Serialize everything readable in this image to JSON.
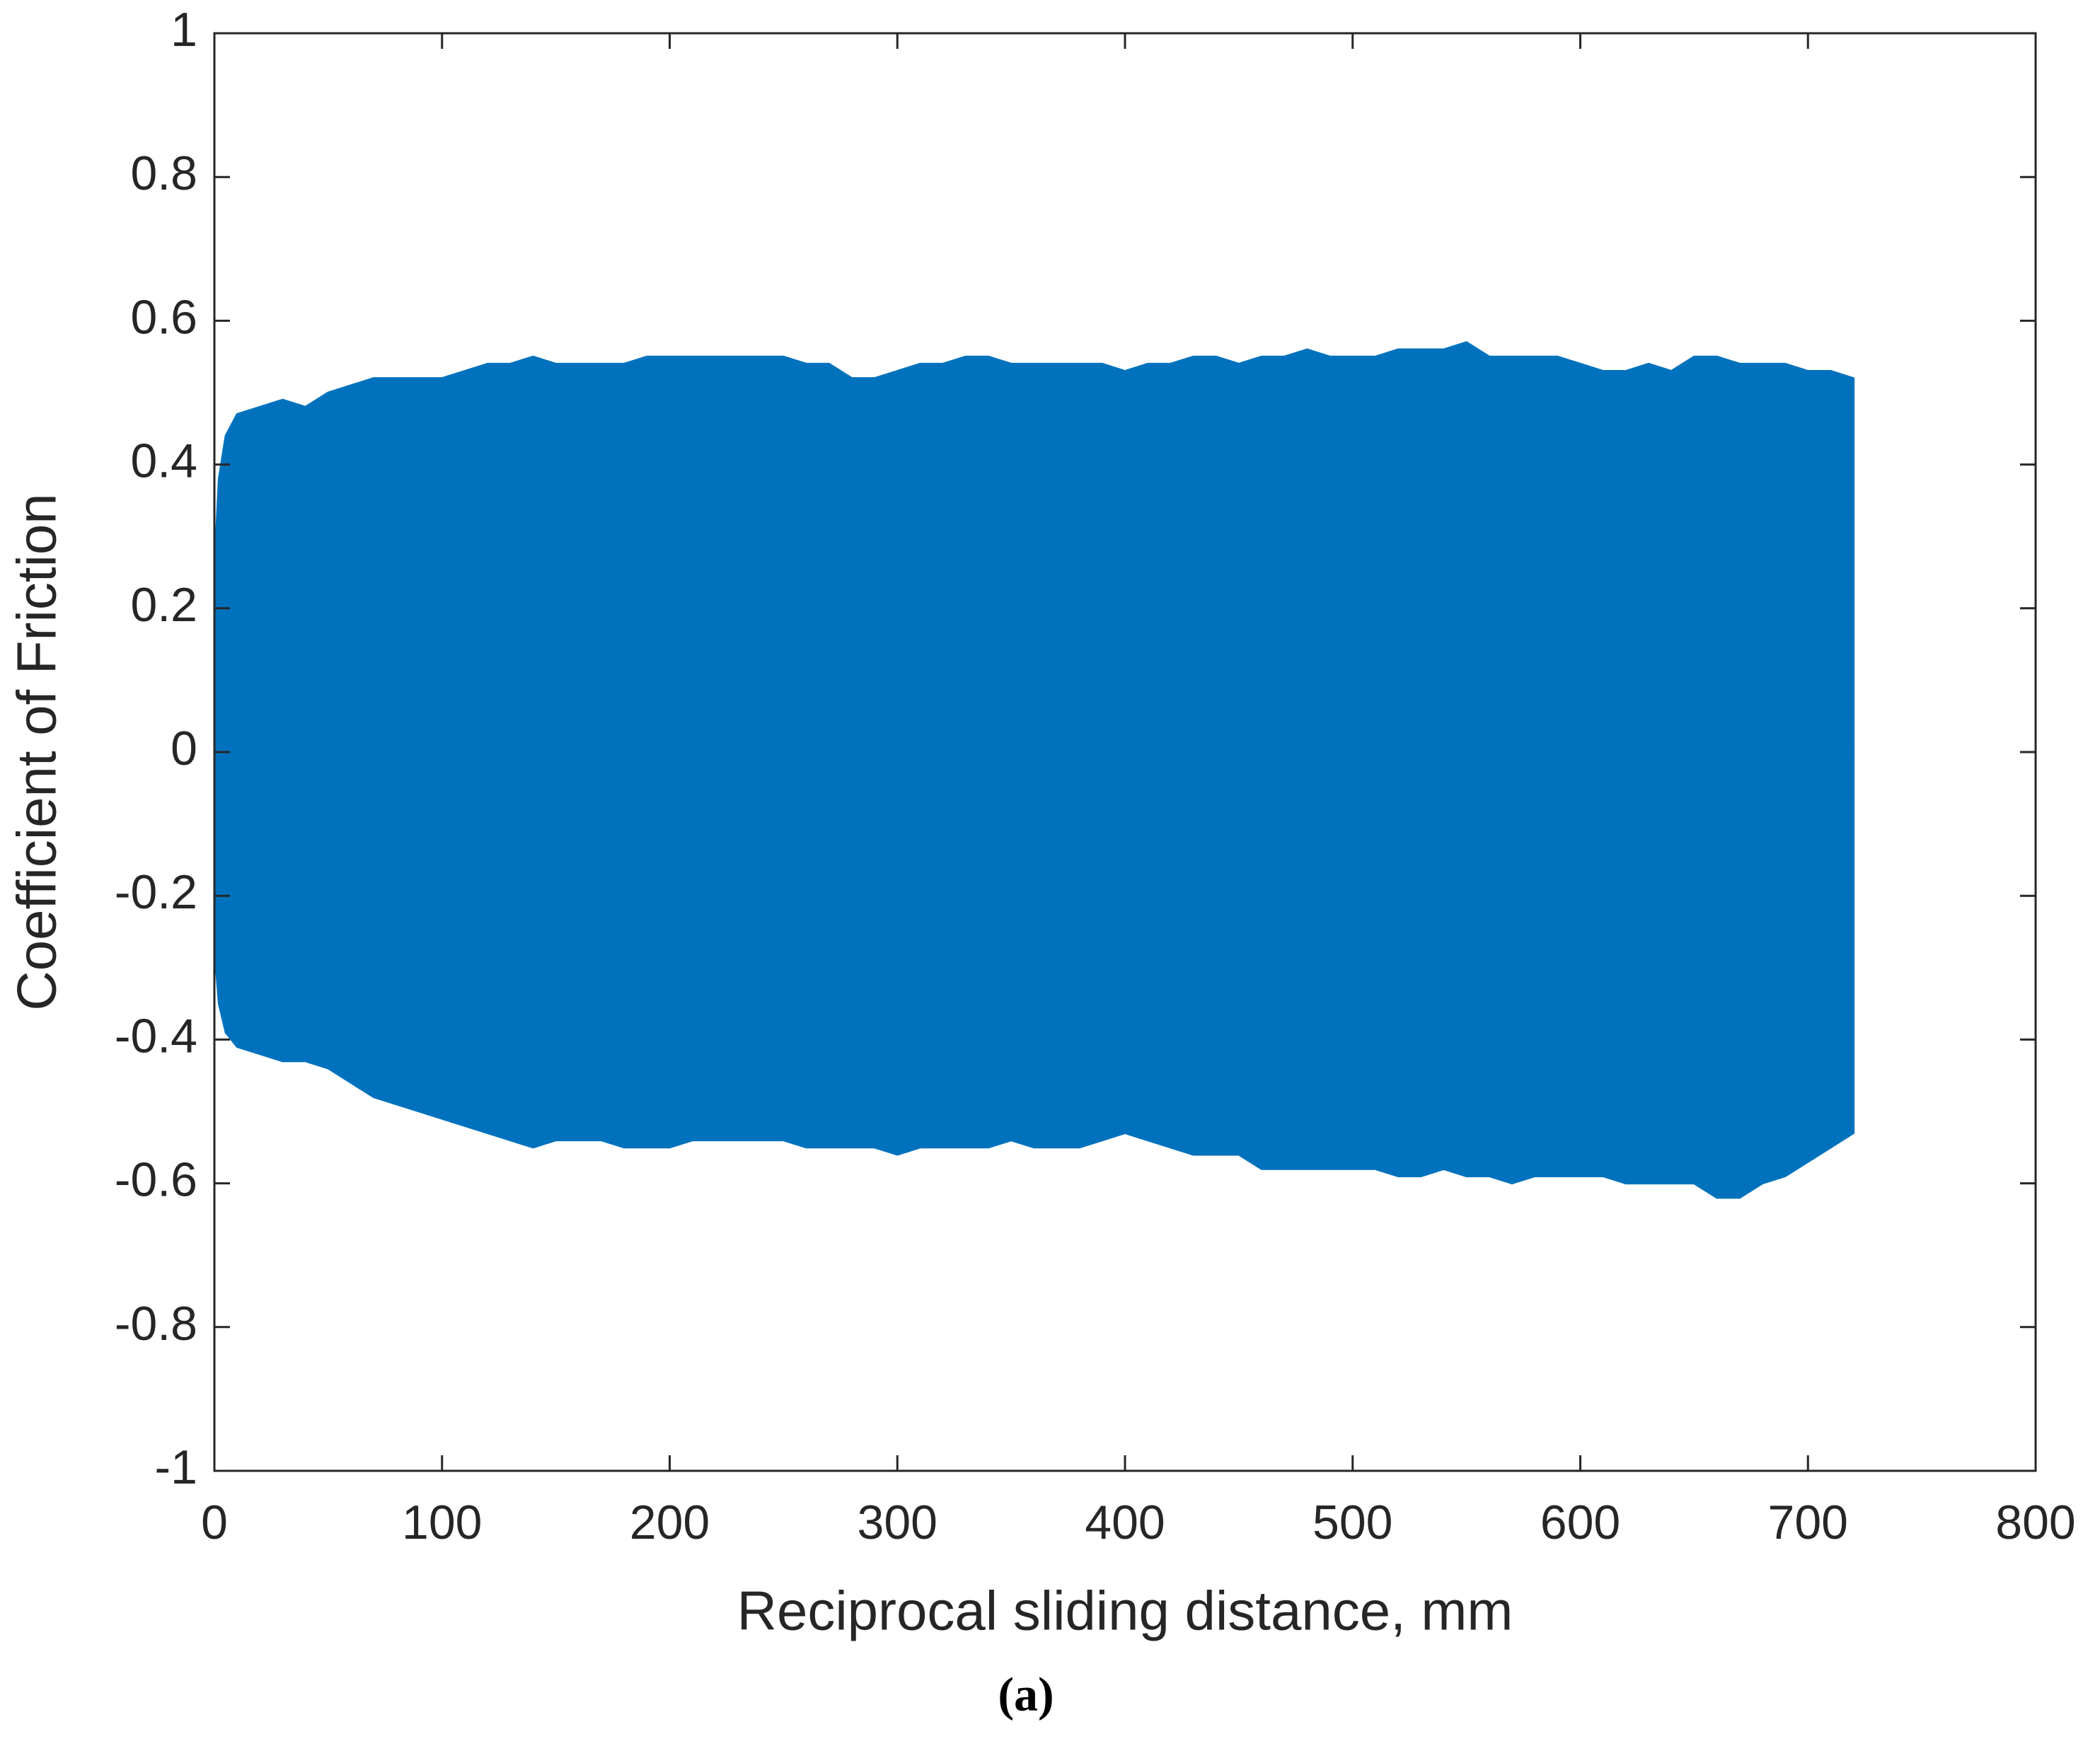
{
  "chart_data": {
    "type": "area",
    "caption": "(a)",
    "x_label": "Reciprocal sliding distance, mm",
    "y_label": "Coefficient of Friction",
    "x": [
      0,
      2,
      5,
      10,
      20,
      30,
      40,
      50,
      60,
      70,
      80,
      90,
      100,
      110,
      120,
      130,
      140,
      150,
      160,
      170,
      180,
      190,
      200,
      210,
      220,
      230,
      240,
      250,
      260,
      270,
      280,
      290,
      300,
      310,
      320,
      330,
      340,
      350,
      360,
      370,
      380,
      390,
      400,
      410,
      420,
      430,
      440,
      450,
      460,
      470,
      480,
      490,
      500,
      510,
      520,
      530,
      540,
      550,
      560,
      570,
      580,
      590,
      600,
      610,
      620,
      630,
      640,
      650,
      660,
      670,
      680,
      690,
      700,
      710,
      720
    ],
    "series": [
      {
        "color": "#0072bd",
        "values": [
          0.25,
          0.38,
          0.44,
          0.47,
          0.48,
          0.49,
          0.48,
          0.5,
          0.51,
          0.52,
          0.52,
          0.52,
          0.52,
          0.53,
          0.54,
          0.54,
          0.55,
          0.54,
          0.54,
          0.54,
          0.54,
          0.55,
          0.55,
          0.55,
          0.55,
          0.55,
          0.55,
          0.55,
          0.54,
          0.54,
          0.52,
          0.52,
          0.53,
          0.54,
          0.54,
          0.55,
          0.55,
          0.54,
          0.54,
          0.54,
          0.54,
          0.54,
          0.53,
          0.54,
          0.54,
          0.55,
          0.55,
          0.54,
          0.55,
          0.55,
          0.56,
          0.55,
          0.55,
          0.55,
          0.56,
          0.56,
          0.56,
          0.57,
          0.55,
          0.55,
          0.55,
          0.55,
          0.54,
          0.53,
          0.53,
          0.54,
          0.53,
          0.55,
          0.55,
          0.54,
          0.54,
          0.54,
          0.53,
          0.53,
          0.52
        ]
      },
      {
        "color": "#0072bd",
        "values": [
          -0.27,
          -0.35,
          -0.39,
          -0.41,
          -0.42,
          -0.43,
          -0.43,
          -0.44,
          -0.46,
          -0.48,
          -0.49,
          -0.5,
          -0.51,
          -0.52,
          -0.53,
          -0.54,
          -0.55,
          -0.54,
          -0.54,
          -0.54,
          -0.55,
          -0.55,
          -0.55,
          -0.54,
          -0.54,
          -0.54,
          -0.54,
          -0.54,
          -0.55,
          -0.55,
          -0.55,
          -0.55,
          -0.56,
          -0.55,
          -0.55,
          -0.55,
          -0.55,
          -0.54,
          -0.55,
          -0.55,
          -0.55,
          -0.54,
          -0.53,
          -0.54,
          -0.55,
          -0.56,
          -0.56,
          -0.56,
          -0.58,
          -0.58,
          -0.58,
          -0.58,
          -0.58,
          -0.58,
          -0.59,
          -0.59,
          -0.58,
          -0.59,
          -0.59,
          -0.6,
          -0.59,
          -0.59,
          -0.59,
          -0.59,
          -0.6,
          -0.6,
          -0.6,
          -0.6,
          -0.62,
          -0.62,
          -0.6,
          -0.59,
          -0.57,
          -0.55,
          -0.53
        ]
      }
    ],
    "xlim": [
      0,
      800
    ],
    "xticks": [
      0,
      100,
      200,
      300,
      400,
      500,
      600,
      700,
      800
    ],
    "ylim": [
      -1,
      1
    ],
    "yticks": [
      -1,
      -0.8,
      -0.6,
      -0.4,
      -0.2,
      0,
      0.2,
      0.4,
      0.6,
      0.8,
      1
    ],
    "grid": false
  }
}
